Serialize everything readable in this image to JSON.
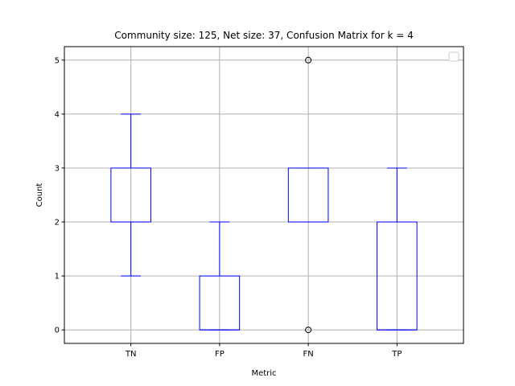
{
  "chart_data": {
    "type": "box",
    "title": "Community size: 125, Net size: 37, Confusion Matrix for k = 4",
    "xlabel": "Metric",
    "ylabel": "Count",
    "categories": [
      "TN",
      "FP",
      "FN",
      "TP"
    ],
    "ylim": [
      -0.25,
      5.25
    ],
    "yticks": [
      0,
      1,
      2,
      3,
      4,
      5
    ],
    "grid": true,
    "legend": "top-right, empty",
    "box_color": "#0000ff",
    "grid_color": "#b0b0b0",
    "boxes": [
      {
        "category": "TN",
        "whislo": 1,
        "q1": 2,
        "med": 2,
        "q3": 3,
        "whishi": 4,
        "fliers": []
      },
      {
        "category": "FP",
        "whislo": 0,
        "q1": 0,
        "med": 0,
        "q3": 1,
        "whishi": 2,
        "fliers": []
      },
      {
        "category": "FN",
        "whislo": 2,
        "q1": 2,
        "med": 2,
        "q3": 3,
        "whishi": 3,
        "fliers": [
          0,
          5
        ]
      },
      {
        "category": "TP",
        "whislo": 0,
        "q1": 0,
        "med": 0,
        "q3": 2,
        "whishi": 3,
        "fliers": []
      }
    ]
  }
}
